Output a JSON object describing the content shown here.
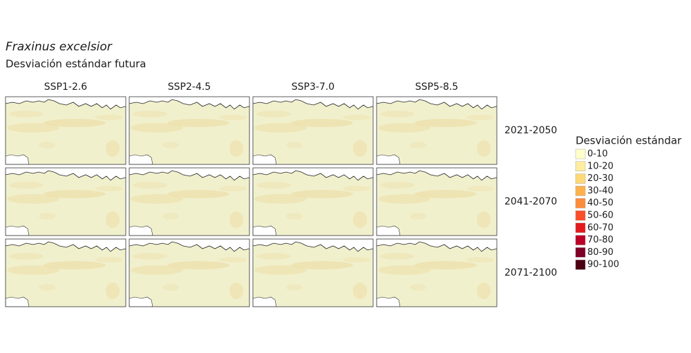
{
  "title": "Fraxinus excelsior",
  "subtitle": "Desviación estándar futura",
  "columns": [
    "SSP1-2.6",
    "SSP2-4.5",
    "SSP3-7.0",
    "SSP5-8.5"
  ],
  "rows": [
    "2021-2050",
    "2041-2070",
    "2071-2100"
  ],
  "legend": {
    "title": "Desviación estándar",
    "items": [
      {
        "label": "0-10",
        "color": "#ffffcc"
      },
      {
        "label": "10-20",
        "color": "#ffeda0"
      },
      {
        "label": "20-30",
        "color": "#fed976"
      },
      {
        "label": "30-40",
        "color": "#feb24c"
      },
      {
        "label": "40-50",
        "color": "#fd8d3c"
      },
      {
        "label": "50-60",
        "color": "#fc4e2a"
      },
      {
        "label": "60-70",
        "color": "#e31a1c"
      },
      {
        "label": "70-80",
        "color": "#bd0026"
      },
      {
        "label": "80-90",
        "color": "#800026"
      },
      {
        "label": "90-100",
        "color": "#4d0012"
      }
    ]
  }
}
